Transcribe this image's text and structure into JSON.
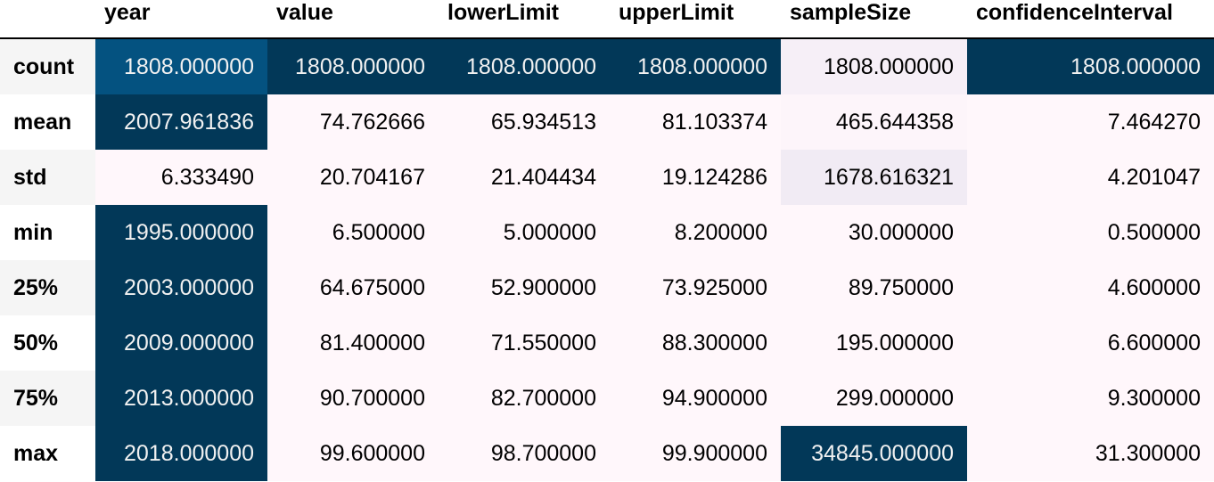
{
  "chart_data": {
    "type": "table",
    "columns": [
      "year",
      "value",
      "lowerLimit",
      "upperLimit",
      "sampleSize",
      "confidenceInterval"
    ],
    "rows": [
      {
        "label": "count",
        "values": [
          "1808.000000",
          "1808.000000",
          "1808.000000",
          "1808.000000",
          "1808.000000",
          "1808.000000"
        ]
      },
      {
        "label": "mean",
        "values": [
          "2007.961836",
          "74.762666",
          "65.934513",
          "81.103374",
          "465.644358",
          "7.464270"
        ]
      },
      {
        "label": "std",
        "values": [
          "6.333490",
          "20.704167",
          "21.404434",
          "19.124286",
          "1678.616321",
          "4.201047"
        ]
      },
      {
        "label": "min",
        "values": [
          "1995.000000",
          "6.500000",
          "5.000000",
          "8.200000",
          "30.000000",
          "0.500000"
        ]
      },
      {
        "label": "25%",
        "values": [
          "2003.000000",
          "64.675000",
          "52.900000",
          "73.925000",
          "89.750000",
          "4.600000"
        ]
      },
      {
        "label": "50%",
        "values": [
          "2009.000000",
          "81.400000",
          "71.550000",
          "88.300000",
          "195.000000",
          "6.600000"
        ]
      },
      {
        "label": "75%",
        "values": [
          "2013.000000",
          "90.700000",
          "82.700000",
          "94.900000",
          "299.000000",
          "9.300000"
        ]
      },
      {
        "label": "max",
        "values": [
          "2018.000000",
          "99.600000",
          "98.700000",
          "99.900000",
          "34845.000000",
          "31.300000"
        ]
      }
    ],
    "cell_colors": [
      [
        "#045280",
        "#023858",
        "#023858",
        "#023858",
        "#f6eff7",
        "#023858"
      ],
      [
        "#023858",
        "#fff7fb",
        "#fff7fb",
        "#fff7fb",
        "#fdf5fa",
        "#fff7fb"
      ],
      [
        "#fff7fb",
        "#fff7fb",
        "#fff7fb",
        "#fff7fb",
        "#f1ebf4",
        "#fff7fb"
      ],
      [
        "#023858",
        "#fff7fb",
        "#fff7fb",
        "#fff7fb",
        "#fff7fb",
        "#fff7fb"
      ],
      [
        "#023858",
        "#fff7fb",
        "#fff7fb",
        "#fff7fb",
        "#fff7fb",
        "#fff7fb"
      ],
      [
        "#023858",
        "#fff7fb",
        "#fff7fb",
        "#fff7fb",
        "#fff7fb",
        "#fff7fb"
      ],
      [
        "#023858",
        "#fff7fb",
        "#fff7fb",
        "#fff7fb",
        "#fff7fb",
        "#fff7fb"
      ],
      [
        "#023858",
        "#fff7fb",
        "#fff7fb",
        "#fff7fb",
        "#023858",
        "#fff7fb"
      ]
    ],
    "text_colors": {
      "dark_bg": "#f1f1f1",
      "light_bg": "#000000"
    }
  }
}
